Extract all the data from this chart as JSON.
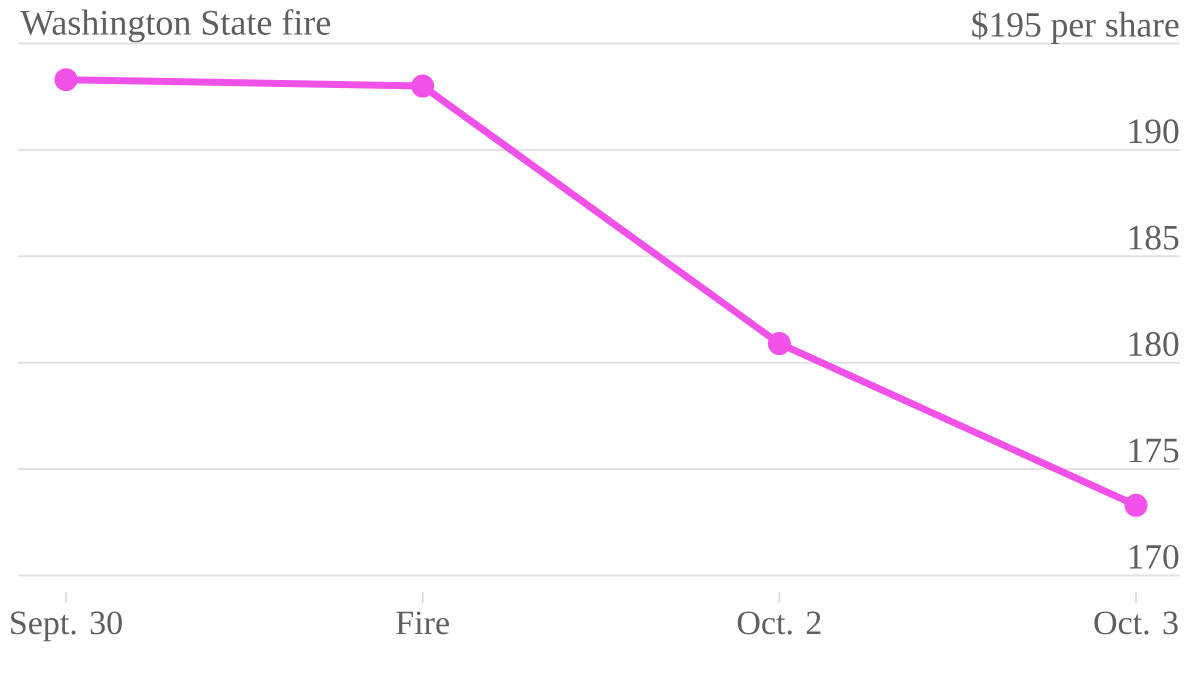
{
  "chart_data": {
    "type": "line",
    "title": "Washington State fire",
    "categories": [
      "Sept. 30",
      "Fire",
      "Oct. 2",
      "Oct. 3"
    ],
    "series": [
      {
        "color": "#f052e8",
        "values": [
          193.3,
          193.0,
          180.9,
          173.3
        ]
      }
    ],
    "ylim": [
      170,
      195
    ],
    "yticks": [
      170,
      175,
      180,
      185,
      190,
      {
        "value": 195,
        "label": "$195 per share"
      }
    ],
    "grid": "y",
    "marker": "circle",
    "line_style": "solid"
  }
}
